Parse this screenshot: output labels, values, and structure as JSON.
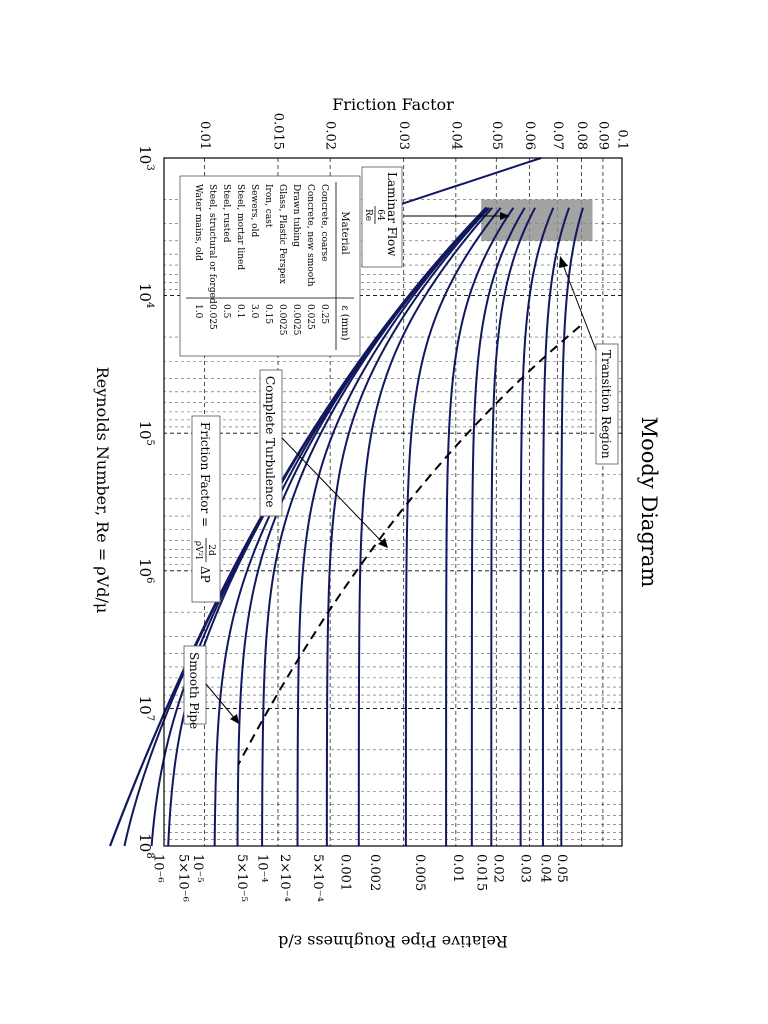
{
  "chart_data": {
    "type": "line",
    "title": "Moody Diagram",
    "xlabel": "Reynolds Number, Re = ρVd/μ",
    "ylabel_left": "Friction Factor",
    "ylabel_right": "Relative Pipe Roughness ε/d",
    "x_scale": "log",
    "y_scale": "log",
    "xlim": [
      1000,
      100000000
    ],
    "ylim": [
      0.008,
      0.1
    ],
    "grid": true,
    "x_ticks": [
      {
        "value": 1000,
        "base": "10",
        "exp": "3"
      },
      {
        "value": 10000,
        "base": "10",
        "exp": "4"
      },
      {
        "value": 100000,
        "base": "10",
        "exp": "5"
      },
      {
        "value": 1000000,
        "base": "10",
        "exp": "6"
      },
      {
        "value": 10000000,
        "base": "10",
        "exp": "7"
      },
      {
        "value": 100000000,
        "base": "10",
        "exp": "8"
      }
    ],
    "y_ticks": [
      {
        "value": 0.01,
        "label": "0.01"
      },
      {
        "value": 0.015,
        "label": "0.015"
      },
      {
        "value": 0.02,
        "label": "0.02"
      },
      {
        "value": 0.03,
        "label": "0.03"
      },
      {
        "value": 0.04,
        "label": "0.04"
      },
      {
        "value": 0.05,
        "label": "0.05"
      },
      {
        "value": 0.06,
        "label": "0.06"
      },
      {
        "value": 0.07,
        "label": "0.07"
      },
      {
        "value": 0.08,
        "label": "0.08"
      },
      {
        "value": 0.09,
        "label": "0.09"
      },
      {
        "value": 0.1,
        "label": "0.1"
      }
    ],
    "roughness_labels": [
      "0.05",
      "0.04",
      "0.03",
      "0.02",
      "0.015",
      "0.01",
      "0.005",
      "0.002",
      "0.001",
      "5×10⁻⁴",
      "2×10⁻⁴",
      "10⁻⁴",
      "5×10⁻⁵",
      "10⁻⁵",
      "5×10⁻⁶",
      "10⁻⁶"
    ],
    "roughness_values": [
      0.05,
      0.04,
      0.03,
      0.02,
      0.015,
      0.01,
      0.005,
      0.002,
      0.001,
      0.0005,
      0.0002,
      0.0001,
      5e-05,
      1e-05,
      5e-06,
      1e-06
    ],
    "series": [
      {
        "kind": "laminar",
        "formula": "f = 64/Re",
        "x_range": [
          1000,
          2300
        ]
      },
      {
        "kind": "turbulent",
        "formula": "Colebrook",
        "x_range": [
          2300,
          100000000
        ]
      },
      {
        "kind": "complete-turbulence-boundary",
        "style": "dashed"
      }
    ],
    "transition_region": {
      "x_range": [
        2000,
        4000
      ]
    },
    "annotations": {
      "laminar_flow": "Laminar Flow",
      "laminar_formula_num": "64",
      "laminar_formula_den": "Re",
      "transition_region": "Transition Region",
      "complete_turbulence": "Complete Turbulence",
      "friction_factor_lhs": "Friction Factor =",
      "friction_factor_num": "2d",
      "friction_factor_den": "ρV²l",
      "friction_factor_rhs": "ΔP",
      "smooth_pipe": "Smooth Pipe"
    },
    "table": {
      "header_material": "Material",
      "header_epsilon": "ε (mm)",
      "rows": [
        {
          "material": "Concrete, coarse",
          "epsilon": "0.25"
        },
        {
          "material": "Concrete, new smooth",
          "epsilon": "0.025"
        },
        {
          "material": "Drawn tubing",
          "epsilon": "0.0025"
        },
        {
          "material": "Glass, Plastic Perspex",
          "epsilon": "0.0025"
        },
        {
          "material": "Iron, cast",
          "epsilon": "0.15"
        },
        {
          "material": "Sewers, old",
          "epsilon": "3.0"
        },
        {
          "material": "Steel, mortar lined",
          "epsilon": "0.1"
        },
        {
          "material": "Steel, rusted",
          "epsilon": "0.5"
        },
        {
          "material": "Steel, structural or forged",
          "epsilon": "0.025"
        },
        {
          "material": "Water mains, old",
          "epsilon": "1.0"
        }
      ]
    },
    "colors": {
      "curve": "#11185e",
      "grid": "#000000",
      "transition_band": "#8c8c8c"
    }
  }
}
